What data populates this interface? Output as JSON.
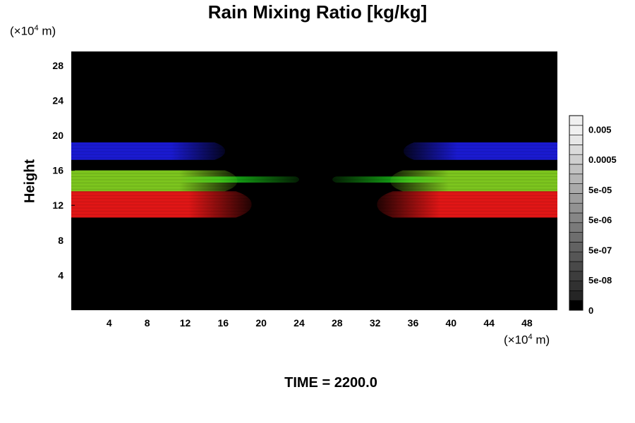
{
  "title": "Rain Mixing Ratio [kg/kg]",
  "y_unit": {
    "prefix": "(×10",
    "exp": "4",
    "suffix": " m)"
  },
  "x_unit": {
    "prefix": "(×10",
    "exp": "4",
    "suffix": " m)"
  },
  "time_label": "TIME = 2200.0",
  "chart_data": {
    "type": "heatmap",
    "title": "Rain Mixing Ratio [kg/kg]",
    "xlabel": "",
    "ylabel": "Height",
    "xlim": [
      0,
      51.2
    ],
    "ylim": [
      0,
      29.6
    ],
    "x_ticks": [
      4,
      8,
      12,
      16,
      20,
      24,
      28,
      32,
      36,
      40,
      44,
      48
    ],
    "y_ticks": [
      4,
      8,
      12,
      16,
      20,
      24,
      28
    ],
    "colorbar": {
      "scale": "log",
      "labels": [
        "0",
        "5e-08",
        "5e-07",
        "5e-06",
        "5e-05",
        "0.0005",
        "0.005"
      ],
      "levels": 20
    },
    "background_color": "#000000",
    "bands": [
      {
        "color": "#1a1ad0",
        "ymin": 17.2,
        "ymax": 19.2,
        "left_edge_x": 16.2,
        "right_edge_x": 35.0
      },
      {
        "color": "#18c018",
        "ymin": 14.6,
        "ymax": 15.3,
        "left_edge_x": 24.0,
        "right_edge_x": 27.5
      },
      {
        "color": "#7cc41e",
        "ymin": 13.6,
        "ymax": 16.0,
        "left_edge_x": 17.5,
        "right_edge_x": 33.6
      },
      {
        "color": "#e01616",
        "ymin": 10.6,
        "ymax": 13.6,
        "left_edge_x": 19.0,
        "right_edge_x": 32.2
      }
    ]
  }
}
